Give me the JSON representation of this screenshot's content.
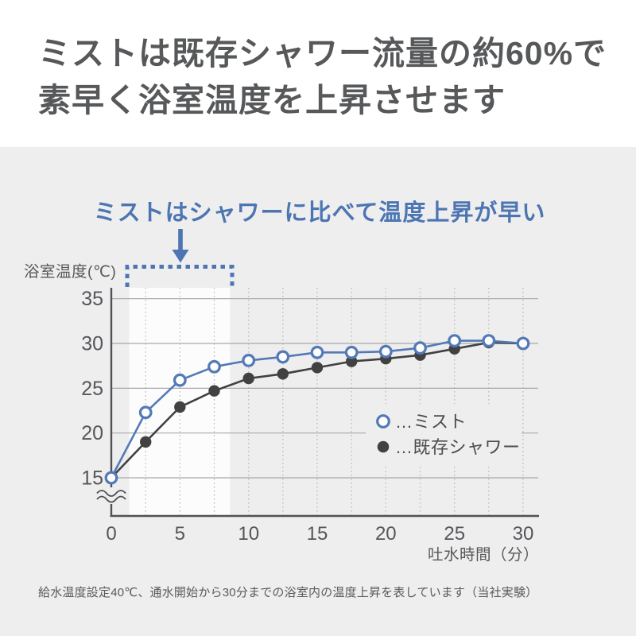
{
  "header": {
    "title_line1": "ミストは既存シャワー流量の約60%で",
    "title_line2": "素早く浴室温度を上昇させます"
  },
  "annotation": {
    "text": "ミストはシャワーに比べて温度上昇が早い"
  },
  "chart_data": {
    "type": "line",
    "title": "",
    "ylabel": "浴室温度(℃)",
    "xlabel": "吐水時間（分）",
    "x": [
      0,
      2.5,
      5,
      7.5,
      10,
      12.5,
      15,
      17.5,
      20,
      22.5,
      25,
      27.5,
      30
    ],
    "series": [
      {
        "name": "ミスト",
        "legend_label": "…ミスト",
        "marker": "open-circle",
        "color": "#5379b7",
        "values": [
          15,
          22.3,
          25.9,
          27.4,
          28.1,
          28.5,
          29,
          29,
          29.1,
          29.5,
          30.3,
          30.3,
          30
        ]
      },
      {
        "name": "既存シャワー",
        "legend_label": "…既存シャワー",
        "marker": "filled-circle",
        "color": "#414141",
        "values": [
          15,
          19,
          22.9,
          24.7,
          26.1,
          26.6,
          27.3,
          28,
          28.3,
          28.7,
          29.4,
          30.1,
          30
        ]
      }
    ],
    "xticks": [
      0,
      5,
      10,
      15,
      20,
      25,
      30
    ],
    "yticks": [
      15,
      20,
      25,
      30,
      35
    ],
    "xlim": [
      0,
      30
    ],
    "ylim_display": [
      15,
      35
    ],
    "y_axis_break": true,
    "highlight_band_minutes": [
      1.3,
      8.65
    ],
    "grid": {
      "horizontal": "solid",
      "vertical": "dotted"
    },
    "legend_position": "middle-right"
  },
  "footer": {
    "note": "給水温度設定40℃、通水開始から30分までの浴室内の温度上昇を表しています（当社実験）"
  },
  "colors": {
    "accent_blue": "#4c75b2",
    "section_bg": "#eeeeee",
    "title_ink": "#57585a",
    "axis_ink": "#505154",
    "grid_line": "#a8a8a8",
    "grid_dotted": "#bdbdbd",
    "highlight_band": "#fcfcfc",
    "marker_fill_open": "#fdfdfd",
    "series_mist": "#5379b7",
    "series_shower": "#414141"
  }
}
